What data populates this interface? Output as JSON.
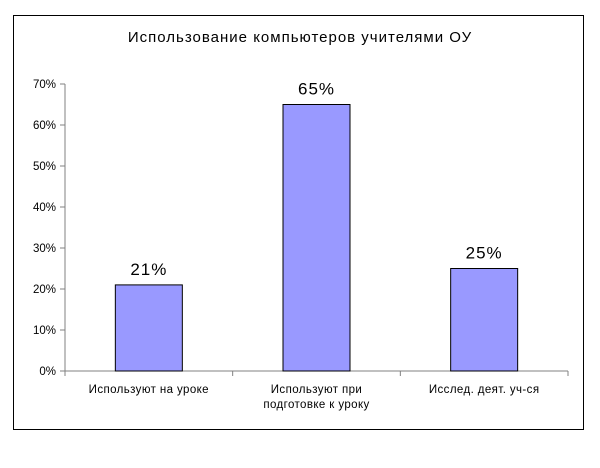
{
  "chart_data": {
    "type": "bar",
    "title": "Использование компьютеров учителями ОУ",
    "categories": [
      [
        "Используют на уроке"
      ],
      [
        "Используют при",
        "подготовке к уроку"
      ],
      [
        "Исслед. деят. уч-ся"
      ]
    ],
    "values": [
      21,
      65,
      25
    ],
    "data_labels": [
      "21%",
      "65%",
      "25%"
    ],
    "y_ticks": [
      {
        "value": 0,
        "label": "0%"
      },
      {
        "value": 10,
        "label": "10%"
      },
      {
        "value": 20,
        "label": "20%"
      },
      {
        "value": 30,
        "label": "30%"
      },
      {
        "value": 40,
        "label": "40%"
      },
      {
        "value": 50,
        "label": "50%"
      },
      {
        "value": 60,
        "label": "60%"
      },
      {
        "value": 70,
        "label": "70%"
      }
    ],
    "ylim": [
      0,
      70
    ],
    "grid": false,
    "legend": "none",
    "colors": {
      "bar_fill": "#9999ff",
      "bar_stroke": "#000000",
      "axis": "#808080"
    }
  }
}
